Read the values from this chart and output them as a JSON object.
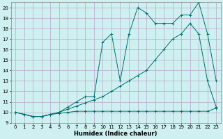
{
  "xlabel": "Humidex (Indice chaleur)",
  "bg_color": "#cff0f0",
  "grid_color": "#b8a8c8",
  "line_color": "#007070",
  "xlim": [
    -0.5,
    23.5
  ],
  "ylim": [
    9,
    20.5
  ],
  "xticks": [
    0,
    1,
    2,
    3,
    4,
    5,
    6,
    7,
    8,
    9,
    10,
    11,
    12,
    13,
    14,
    15,
    16,
    17,
    18,
    19,
    20,
    21,
    22,
    23
  ],
  "yticks": [
    9,
    10,
    11,
    12,
    13,
    14,
    15,
    16,
    17,
    18,
    19,
    20
  ],
  "line1_x": [
    0,
    1,
    2,
    3,
    4,
    5,
    6,
    7,
    8,
    9,
    10,
    11,
    12,
    13,
    14,
    15,
    16,
    17,
    18,
    19,
    20,
    21,
    22,
    23
  ],
  "line1_y": [
    10,
    9.8,
    9.6,
    9.6,
    9.8,
    9.9,
    10.0,
    10.1,
    10.1,
    10.1,
    10.1,
    10.1,
    10.1,
    10.1,
    10.1,
    10.1,
    10.1,
    10.1,
    10.1,
    10.1,
    10.1,
    10.1,
    10.1,
    10.4
  ],
  "line2_x": [
    0,
    1,
    2,
    3,
    4,
    5,
    6,
    7,
    8,
    9,
    10,
    11,
    12,
    13,
    14,
    15,
    16,
    17,
    18,
    19,
    20,
    21,
    22,
    23
  ],
  "line2_y": [
    10,
    9.8,
    9.6,
    9.6,
    9.8,
    10.0,
    10.3,
    10.6,
    10.9,
    11.2,
    11.5,
    12.0,
    12.5,
    13.0,
    13.5,
    14.0,
    15.0,
    16.0,
    17.0,
    17.5,
    18.5,
    17.5,
    13.0,
    10.5
  ],
  "line3_x": [
    0,
    1,
    2,
    3,
    4,
    5,
    6,
    7,
    8,
    9,
    10,
    11,
    12,
    13,
    14,
    15,
    16,
    17,
    18,
    19,
    20,
    21,
    22,
    23
  ],
  "line3_y": [
    10,
    9.8,
    9.6,
    9.6,
    9.8,
    10.0,
    10.5,
    11.0,
    11.5,
    11.5,
    16.7,
    17.5,
    13.0,
    17.5,
    20.0,
    19.5,
    18.5,
    18.5,
    18.5,
    19.3,
    19.3,
    20.5,
    17.5,
    13.0
  ]
}
